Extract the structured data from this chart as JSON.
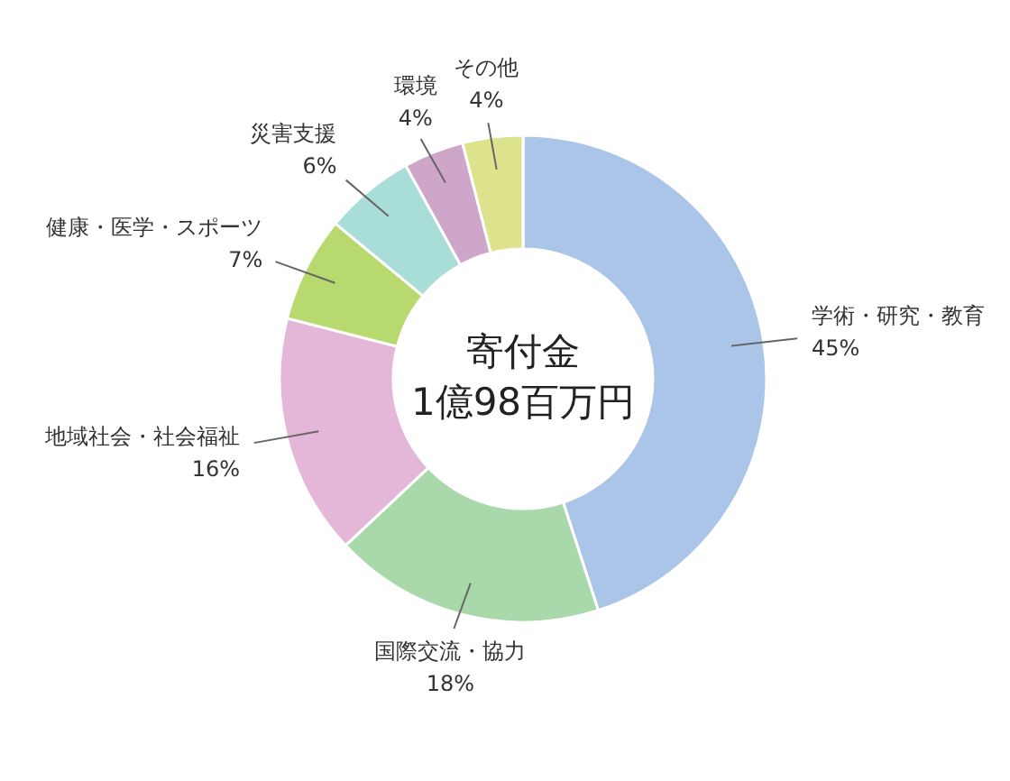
{
  "chart_data": {
    "type": "donut",
    "title": "寄付金",
    "subtitle": "1億98百万円",
    "categories": [
      "学術・研究・教育",
      "国際交流・協力",
      "地域社会・社会福祉",
      "健康・医学・スポーツ",
      "災害支援",
      "環境",
      "その他"
    ],
    "values": [
      45,
      18,
      16,
      7,
      6,
      4,
      4
    ],
    "colors": [
      "#aac5e8",
      "#a9d9ab",
      "#e4b7d8",
      "#b7d96d",
      "#a9ddd8",
      "#cea6c9",
      "#dde28c"
    ],
    "value_labels": [
      "45%",
      "18%",
      "16%",
      "7%",
      "6%",
      "4%",
      "4%"
    ]
  }
}
